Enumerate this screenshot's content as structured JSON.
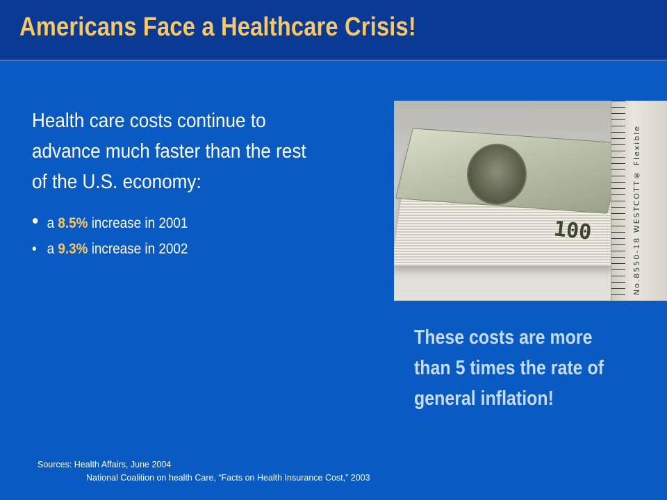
{
  "slide": {
    "title": "Americans Face a Healthcare Crisis!",
    "lead": "Health care costs continue to advance much faster than the rest of the U.S. economy:",
    "bullets": [
      {
        "prefix": "a ",
        "value": "8.5%",
        "suffix": " increase in 2001"
      },
      {
        "prefix": "a ",
        "value": "9.3%",
        "suffix": " increase in 2002"
      }
    ],
    "callout": "These costs are more than 5 times the rate of general inflation!",
    "sources": {
      "line1": "Sources: Health Affairs, June 2004",
      "line2": "National Coalition on health Care, “Facts on Health Insurance Cost,” 2003"
    }
  },
  "colors": {
    "background": "#0a5ac4",
    "header_band": "#0a3a94",
    "title": "#f6c86a",
    "highlight": "#f6c86a",
    "callout": "#c4dcff"
  },
  "icons": {
    "bullet": "bullet-dot-icon"
  }
}
